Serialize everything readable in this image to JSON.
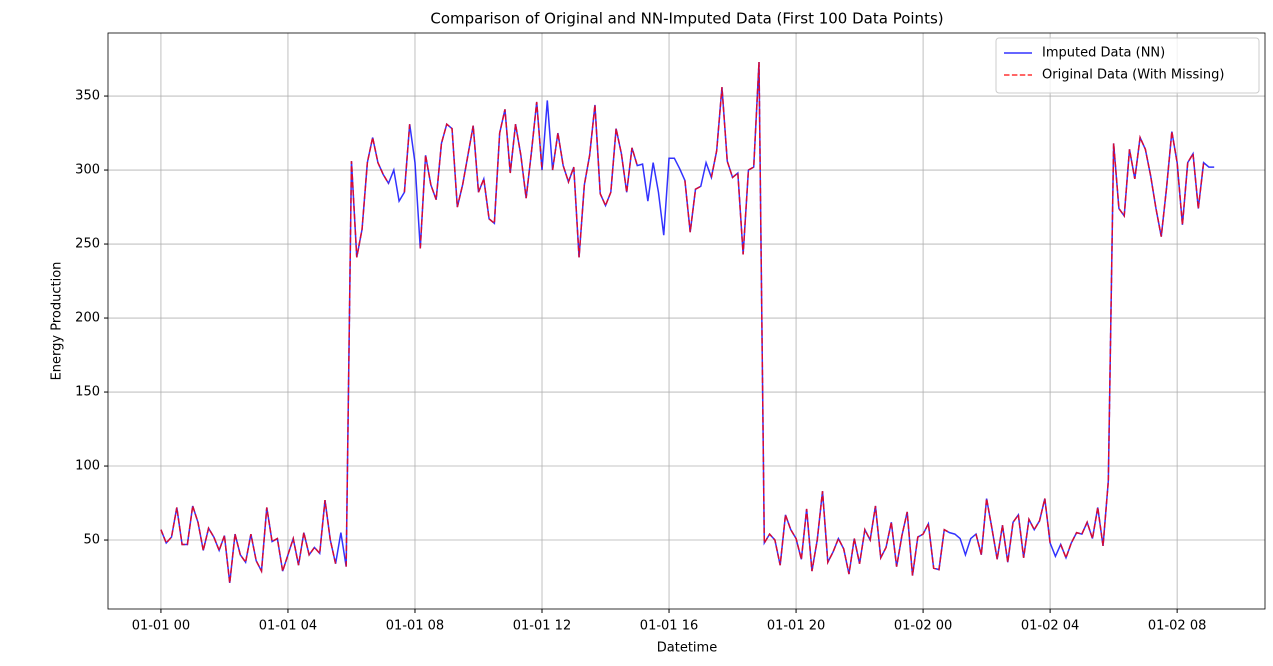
{
  "chart_data": {
    "type": "line",
    "title": "Comparison of Original and NN-Imputed Data (First 100 Data Points)",
    "x_label": "Datetime",
    "y_label": "Energy Production",
    "x": [
      0,
      10,
      20,
      30,
      40,
      50,
      60,
      70,
      80,
      90,
      100,
      110,
      120,
      130,
      140,
      150,
      160,
      170,
      180,
      190,
      200,
      210,
      220,
      230,
      240,
      250,
      260,
      270,
      280,
      290,
      300,
      310,
      320,
      330,
      340,
      350,
      360,
      370,
      380,
      390,
      400,
      410,
      420,
      430,
      440,
      450,
      460,
      470,
      480,
      490,
      500,
      510,
      520,
      530,
      540,
      550,
      560,
      570,
      580,
      590,
      600,
      610,
      620,
      630,
      640,
      650,
      660,
      670,
      680,
      690,
      700,
      710,
      720,
      730,
      740,
      750,
      760,
      770,
      780,
      790,
      800,
      810,
      820,
      830,
      840,
      850,
      860,
      870,
      880,
      890,
      900,
      910,
      920,
      930,
      940,
      950,
      960,
      970,
      980,
      990,
      1000,
      1010,
      1020,
      1030,
      1040,
      1050,
      1060,
      1070,
      1080,
      1090,
      1100,
      1110,
      1120,
      1130,
      1140,
      1150,
      1160,
      1170,
      1180,
      1190,
      1200,
      1210,
      1220,
      1230,
      1240,
      1250,
      1260,
      1270,
      1280,
      1290,
      1300,
      1310,
      1320,
      1330,
      1340,
      1350,
      1360,
      1370,
      1380,
      1390,
      1400,
      1410,
      1420,
      1430,
      1440,
      1450,
      1460,
      1470,
      1480,
      1490,
      1500,
      1510,
      1520,
      1530,
      1540,
      1550,
      1560,
      1570,
      1580,
      1590,
      1600,
      1610,
      1620,
      1630,
      1640,
      1650,
      1660,
      1670,
      1680,
      1690,
      1700,
      1710,
      1720,
      1730,
      1740,
      1750,
      1760,
      1770,
      1780,
      1790,
      1800,
      1810,
      1820,
      1830,
      1840,
      1850,
      1860,
      1870,
      1880,
      1890,
      1900,
      1910,
      1920,
      1930,
      1940,
      1950,
      1960,
      1970,
      1980,
      1990
    ],
    "series": [
      {
        "name": "Imputed Data (NN)",
        "color": "#0000ff",
        "dash": false,
        "values": [
          57,
          48,
          52,
          72,
          47,
          47,
          73,
          62,
          43,
          58,
          52,
          43,
          53,
          21,
          54,
          40,
          35,
          54,
          36,
          29,
          72,
          49,
          51,
          29,
          40,
          51,
          33,
          55,
          40,
          45,
          41,
          77,
          50,
          34,
          55,
          32,
          306,
          241,
          260,
          305,
          322,
          305,
          297,
          291,
          300,
          279,
          285,
          331,
          305,
          247,
          310,
          290,
          280,
          318,
          331,
          328,
          275,
          290,
          310,
          330,
          285,
          294,
          267,
          264,
          325,
          341,
          298,
          331,
          310,
          281,
          312,
          346,
          300,
          347,
          300,
          325,
          303,
          292,
          302,
          241,
          290,
          310,
          344,
          284,
          276,
          285,
          328,
          311,
          285,
          315,
          303,
          304,
          279,
          305,
          285,
          256,
          308,
          308,
          301,
          293,
          258,
          287,
          289,
          305,
          295,
          313,
          356,
          306,
          295,
          298,
          243,
          300,
          302,
          373,
          48,
          54,
          50,
          33,
          67,
          57,
          51,
          37,
          71,
          29,
          50,
          83,
          35,
          42,
          51,
          44,
          27,
          51,
          34,
          57,
          50,
          73,
          38,
          45,
          62,
          32,
          53,
          69,
          26,
          52,
          54,
          61,
          31,
          30,
          57,
          55,
          54,
          51,
          40,
          51,
          54,
          40,
          78,
          58,
          37,
          60,
          35,
          62,
          67,
          38,
          64,
          57,
          63,
          78,
          48,
          39,
          47,
          38,
          48,
          55,
          54,
          62,
          51,
          72,
          46,
          90,
          318,
          274,
          269,
          314,
          294,
          322,
          314,
          296,
          274,
          255,
          288,
          326,
          305,
          263,
          305,
          311,
          274,
          305,
          302,
          302
        ]
      },
      {
        "name": "Original Data (With Missing)",
        "color": "#ff0000",
        "dash": true,
        "values": [
          57,
          48,
          52,
          72,
          47,
          47,
          73,
          62,
          43,
          58,
          52,
          43,
          53,
          21,
          54,
          40,
          35,
          54,
          36,
          29,
          72,
          49,
          51,
          29,
          40,
          51,
          33,
          55,
          40,
          45,
          41,
          77,
          50,
          34,
          null,
          32,
          306,
          241,
          260,
          305,
          322,
          305,
          297,
          291,
          null,
          null,
          285,
          331,
          null,
          247,
          310,
          290,
          280,
          318,
          331,
          328,
          275,
          290,
          310,
          330,
          285,
          294,
          267,
          264,
          325,
          341,
          298,
          331,
          310,
          281,
          312,
          346,
          300,
          null,
          300,
          325,
          303,
          292,
          302,
          241,
          290,
          310,
          344,
          284,
          276,
          285,
          328,
          311,
          285,
          315,
          303,
          null,
          null,
          null,
          null,
          256,
          null,
          null,
          null,
          293,
          258,
          287,
          289,
          null,
          295,
          313,
          356,
          306,
          295,
          298,
          243,
          300,
          302,
          373,
          48,
          54,
          50,
          33,
          67,
          57,
          51,
          37,
          71,
          29,
          50,
          83,
          35,
          42,
          51,
          44,
          27,
          51,
          34,
          57,
          50,
          73,
          38,
          45,
          62,
          32,
          53,
          69,
          26,
          52,
          54,
          61,
          31,
          30,
          57,
          55,
          null,
          null,
          null,
          null,
          54,
          40,
          78,
          58,
          37,
          60,
          35,
          62,
          67,
          38,
          64,
          57,
          63,
          78,
          48,
          null,
          47,
          38,
          48,
          55,
          54,
          62,
          51,
          72,
          46,
          90,
          318,
          274,
          269,
          314,
          294,
          322,
          314,
          296,
          274,
          255,
          288,
          326,
          305,
          263,
          305,
          311,
          274,
          305,
          null,
          null
        ]
      }
    ],
    "xlim": [
      -100,
      2086
    ],
    "ylim": [
      3.4,
      392.6
    ],
    "xticks": [
      {
        "value": 0,
        "label": "01-01 00"
      },
      {
        "value": 240,
        "label": "01-01 04"
      },
      {
        "value": 480,
        "label": "01-01 08"
      },
      {
        "value": 720,
        "label": "01-01 12"
      },
      {
        "value": 960,
        "label": "01-01 16"
      },
      {
        "value": 1200,
        "label": "01-01 20"
      },
      {
        "value": 1440,
        "label": "01-02 00"
      },
      {
        "value": 1680,
        "label": "01-02 04"
      },
      {
        "value": 1920,
        "label": "01-02 08"
      }
    ],
    "yticks": [
      50,
      100,
      150,
      200,
      250,
      300,
      350
    ],
    "grid": true,
    "legend": "upper right"
  }
}
